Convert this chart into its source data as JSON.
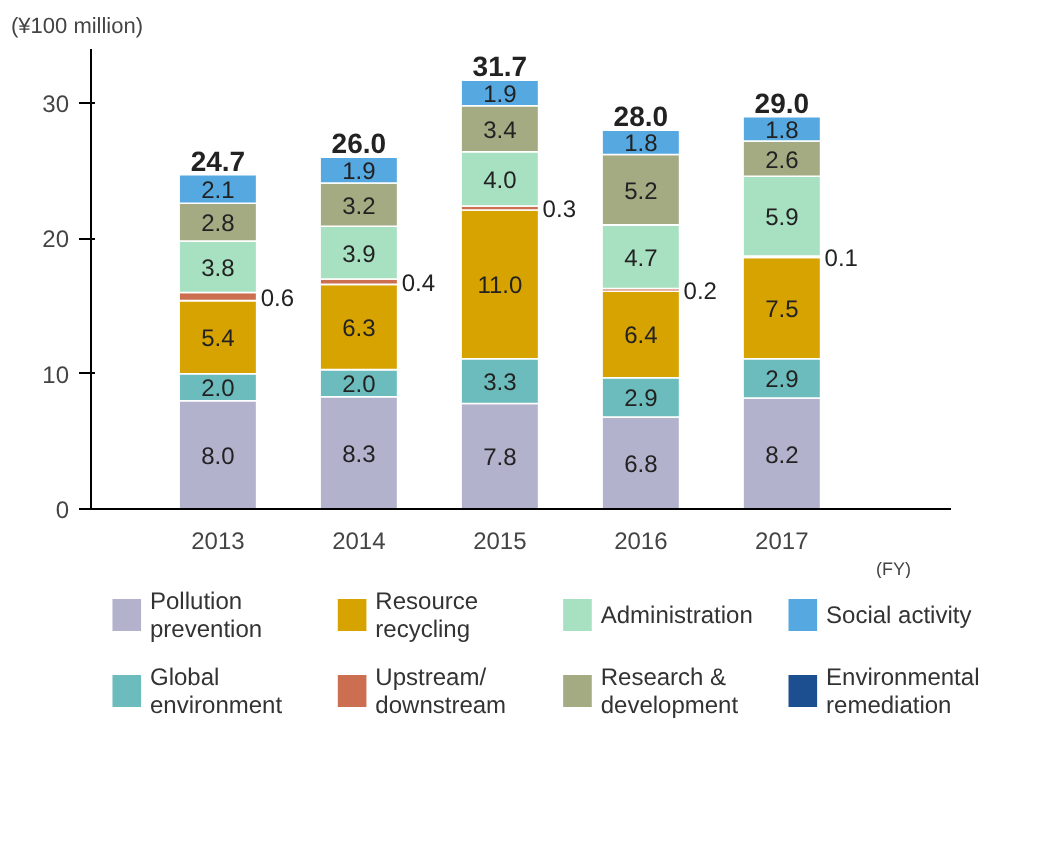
{
  "chart_data": {
    "type": "bar",
    "stacked": true,
    "ylabel": "(¥100 million)",
    "xlabel": "(FY)",
    "categories": [
      "2013",
      "2014",
      "2015",
      "2016",
      "2017"
    ],
    "ylim": [
      0,
      34
    ],
    "yticks": [
      0,
      10,
      20,
      30
    ],
    "legend": "bottom",
    "totals": [
      "24.7",
      "26.0",
      "31.7",
      "28.0",
      "29.0"
    ],
    "series": [
      {
        "name": "Pollution\nprevention",
        "color": "#b3b2cc",
        "values": [
          8.0,
          8.3,
          7.8,
          6.8,
          8.2
        ],
        "value_labels": [
          "8.0",
          "8.3",
          "7.8",
          "6.8",
          "8.2"
        ]
      },
      {
        "name": "Global\nenvironment",
        "color": "#6cbcbd",
        "values": [
          2.0,
          2.0,
          3.3,
          2.9,
          2.9
        ],
        "value_labels": [
          "2.0",
          "2.0",
          "3.3",
          "2.9",
          "2.9"
        ]
      },
      {
        "name": "Resource\nrecycling",
        "color": "#d6a300",
        "values": [
          5.4,
          6.3,
          11.0,
          6.4,
          7.5
        ],
        "value_labels": [
          "5.4",
          "6.3",
          "11.0",
          "6.4",
          "7.5"
        ]
      },
      {
        "name": "Upstream/\ndownstream",
        "color": "#cc6f50",
        "values": [
          0.6,
          0.4,
          0.3,
          0.2,
          0.1
        ],
        "value_labels": [
          "0.6",
          "0.4",
          "0.3",
          "0.2",
          "0.1"
        ]
      },
      {
        "name": "Administration",
        "color": "#a8e0c2",
        "values": [
          3.8,
          3.9,
          4.0,
          4.7,
          5.9
        ],
        "value_labels": [
          "3.8",
          "3.9",
          "4.0",
          "4.7",
          "5.9"
        ]
      },
      {
        "name": "Research &\ndevelopment",
        "color": "#a4ab82",
        "values": [
          2.8,
          3.2,
          3.4,
          5.2,
          2.6
        ],
        "value_labels": [
          "2.8",
          "3.2",
          "3.4",
          "5.2",
          "2.6"
        ]
      },
      {
        "name": "Social activity",
        "color": "#56a9e0",
        "values": [
          2.1,
          1.9,
          1.9,
          1.8,
          1.8
        ],
        "value_labels": [
          "2.1",
          "1.9",
          "1.9",
          "1.8",
          "1.8"
        ]
      },
      {
        "name": "Environmental\nremediation",
        "color": "#1c4f8f",
        "values": [
          null,
          null,
          null,
          null,
          null
        ]
      }
    ]
  }
}
